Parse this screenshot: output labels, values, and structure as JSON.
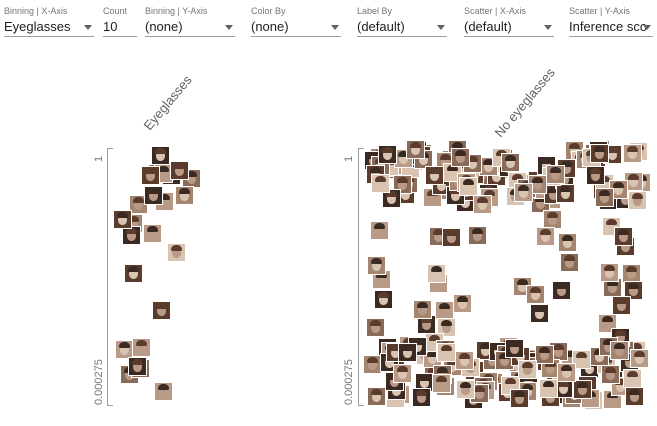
{
  "toolbar": {
    "controls": [
      {
        "label": "Binning | X-Axis",
        "value": "Eyeglasses"
      },
      {
        "label": "Count",
        "value": "10"
      },
      {
        "label": "Binning | Y-Axis",
        "value": "(none)"
      },
      {
        "label": "Color By",
        "value": "(none)"
      },
      {
        "label": "Label By",
        "value": "(default)"
      },
      {
        "label": "Scatter | X-Axis",
        "value": "(default)"
      },
      {
        "label": "Scatter | Y-Axis",
        "value": "Inference sco"
      }
    ]
  },
  "facets": [
    {
      "title": "Eyeglasses",
      "axis_max": "1",
      "axis_min": "0.000275"
    },
    {
      "title": "No eyeglasses",
      "axis_max": "1",
      "axis_min": "0.000275"
    }
  ],
  "colors": {
    "text": "#212121",
    "label": "#757575",
    "underline": "#9e9e9e",
    "thumb_tones": [
      "#5b3b2c",
      "#8a6a58",
      "#b89a86",
      "#d9c4b2",
      "#3a2a22",
      "#a58470"
    ]
  },
  "icons": {
    "dropdown": "chevron-down-icon",
    "thumbnail": "face-thumbnail-icon"
  }
}
